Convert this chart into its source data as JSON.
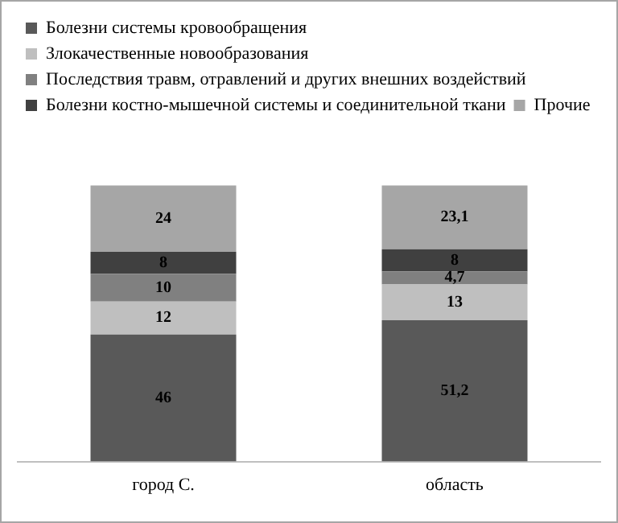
{
  "chart_data": {
    "type": "bar",
    "stacked": true,
    "categories": [
      "город С.",
      "область"
    ],
    "series": [
      {
        "name": "Болезни системы кровообращения",
        "color": "#595959",
        "values": [
          46,
          51.2
        ],
        "value_labels": [
          "46",
          "51,2"
        ]
      },
      {
        "name": "Злокачественные новообразования",
        "color": "#bfbfbf",
        "values": [
          12,
          13
        ],
        "value_labels": [
          "12",
          "13"
        ]
      },
      {
        "name": "Последствия травм, отравлений и других внешних воздействий",
        "color": "#808080",
        "values": [
          10,
          4.7
        ],
        "value_labels": [
          "10",
          "4,7"
        ]
      },
      {
        "name": "Болезни костно-мышечной системы и соединительной ткани",
        "color": "#404040",
        "values": [
          8,
          8
        ],
        "value_labels": [
          "8",
          "8"
        ]
      },
      {
        "name": "Прочие",
        "color": "#a6a6a6",
        "values": [
          24,
          23.1
        ],
        "value_labels": [
          "24",
          "23,1"
        ]
      }
    ],
    "legend": "top left",
    "grid": false
  }
}
